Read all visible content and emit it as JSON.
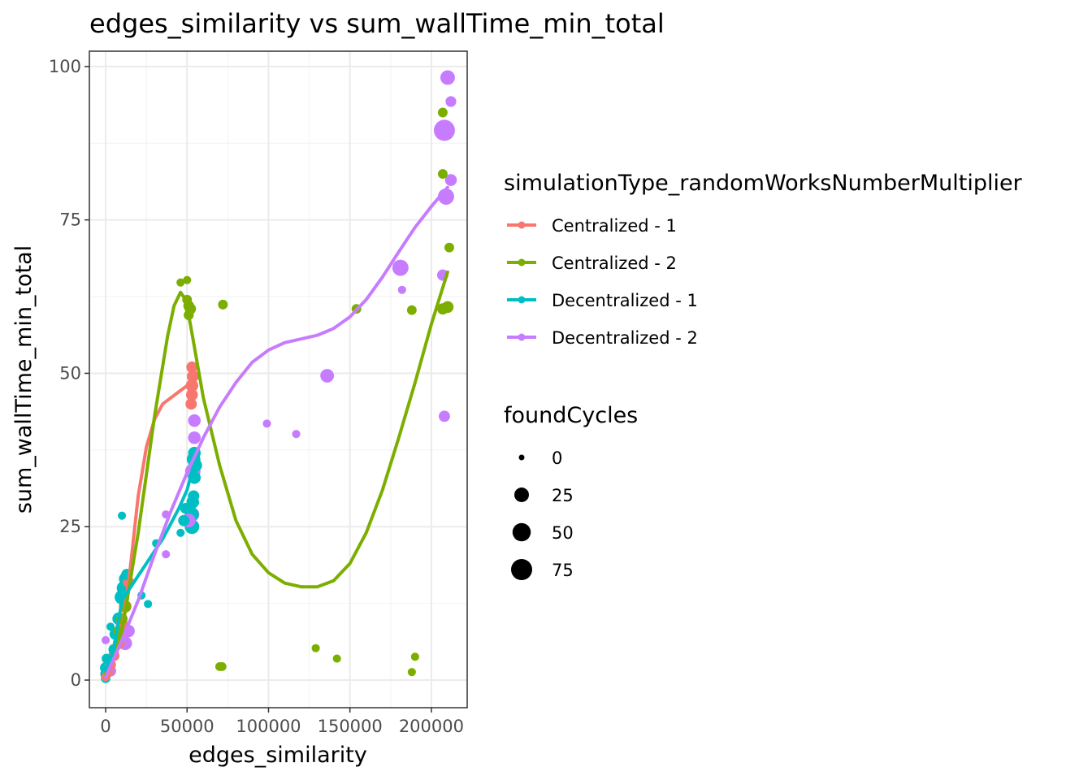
{
  "chart_data": {
    "type": "scatter",
    "title": "edges_similarity  vs  sum_wallTime_min_total",
    "xlabel": "edges_similarity",
    "ylabel": "sum_wallTime_min_total",
    "xlim": [
      -10000,
      222000
    ],
    "ylim": [
      -4.5,
      102.5
    ],
    "x_ticks": [
      0,
      50000,
      100000,
      150000,
      200000
    ],
    "y_ticks": [
      0,
      25,
      50,
      75,
      100
    ],
    "x_tick_labels": [
      "0",
      "50000",
      "100000",
      "150000",
      "200000"
    ],
    "y_tick_labels": [
      "0",
      "25",
      "50",
      "75",
      "100"
    ],
    "grid": true,
    "color_legend": {
      "title": "simulationType_randomWorksNumberMultiplier",
      "placement": "right"
    },
    "size_legend": {
      "title": "foundCycles",
      "placement": "right",
      "breaks": [
        0,
        25,
        50,
        75
      ],
      "labels": [
        "0",
        "25",
        "50",
        "75"
      ]
    },
    "series": [
      {
        "name": "Centralized - 1",
        "color": "#F8766D",
        "points": [
          [
            0,
            0.5,
            3
          ],
          [
            1500,
            1.2,
            5
          ],
          [
            3000,
            2.5,
            8
          ],
          [
            5000,
            4,
            10
          ],
          [
            8000,
            6,
            12
          ],
          [
            10000,
            9,
            14
          ],
          [
            12000,
            12,
            15
          ],
          [
            14000,
            16,
            10
          ],
          [
            52500,
            45,
            10
          ],
          [
            53000,
            46.5,
            12
          ],
          [
            53000,
            48,
            15
          ],
          [
            53500,
            49.5,
            12
          ],
          [
            53000,
            51,
            10
          ]
        ],
        "smooth": [
          [
            0,
            0.5
          ],
          [
            5000,
            3.5
          ],
          [
            10000,
            8
          ],
          [
            15000,
            18
          ],
          [
            20000,
            30
          ],
          [
            25000,
            38
          ],
          [
            30000,
            42.5
          ],
          [
            35000,
            45
          ],
          [
            40000,
            46
          ],
          [
            45000,
            47
          ],
          [
            50000,
            48
          ],
          [
            53000,
            49
          ]
        ]
      },
      {
        "name": "Centralized - 2",
        "color": "#7CAE00",
        "points": [
          [
            46000,
            64.8,
            2
          ],
          [
            50000,
            65.2,
            2
          ],
          [
            50000,
            62,
            5
          ],
          [
            51000,
            61,
            8
          ],
          [
            52000,
            60.5,
            10
          ],
          [
            51000,
            59.5,
            6
          ],
          [
            72000,
            61.2,
            5
          ],
          [
            154000,
            60.5,
            5
          ],
          [
            188000,
            60.3,
            5
          ],
          [
            207000,
            60.5,
            10
          ],
          [
            210000,
            60.8,
            12
          ],
          [
            207000,
            82.5,
            5
          ],
          [
            207000,
            92.5,
            5
          ],
          [
            211000,
            70.5,
            5
          ],
          [
            70000,
            2.2,
            3
          ],
          [
            71500,
            2.2,
            3
          ],
          [
            129000,
            5.2,
            2
          ],
          [
            142000,
            3.5,
            2
          ],
          [
            188000,
            1.3,
            2
          ],
          [
            190000,
            3.8,
            2
          ],
          [
            8000,
            8,
            8
          ],
          [
            10000,
            10,
            10
          ],
          [
            12000,
            12,
            10
          ]
        ],
        "smooth": [
          [
            0,
            1
          ],
          [
            10000,
            8
          ],
          [
            20000,
            24
          ],
          [
            30000,
            43
          ],
          [
            38000,
            56
          ],
          [
            42000,
            61
          ],
          [
            46000,
            63.2
          ],
          [
            49000,
            62
          ],
          [
            52000,
            58
          ],
          [
            60000,
            46
          ],
          [
            70000,
            35
          ],
          [
            80000,
            26
          ],
          [
            90000,
            20.5
          ],
          [
            100000,
            17.5
          ],
          [
            110000,
            15.8
          ],
          [
            120000,
            15.2
          ],
          [
            130000,
            15.2
          ],
          [
            140000,
            16.2
          ],
          [
            150000,
            19
          ],
          [
            160000,
            24
          ],
          [
            170000,
            31
          ],
          [
            180000,
            39.5
          ],
          [
            190000,
            48.5
          ],
          [
            200000,
            58
          ],
          [
            210000,
            66.5
          ]
        ]
      },
      {
        "name": "Decentralized - 1",
        "color": "#00BFC4",
        "points": [
          [
            0,
            0.3,
            5
          ],
          [
            0,
            1,
            8
          ],
          [
            0,
            2,
            10
          ],
          [
            500,
            3.5,
            5
          ],
          [
            3000,
            8.7,
            2
          ],
          [
            5000,
            5,
            8
          ],
          [
            6000,
            7.5,
            12
          ],
          [
            8000,
            10,
            15
          ],
          [
            10000,
            13.5,
            25
          ],
          [
            11000,
            15,
            20
          ],
          [
            12000,
            16.5,
            15
          ],
          [
            13000,
            17.2,
            10
          ],
          [
            10000,
            26.8,
            2
          ],
          [
            22000,
            13.8,
            2
          ],
          [
            26000,
            12.4,
            2
          ],
          [
            31000,
            22.3,
            2
          ],
          [
            53000,
            25,
            25
          ],
          [
            53000,
            27,
            20
          ],
          [
            53500,
            29,
            15
          ],
          [
            54000,
            30,
            10
          ],
          [
            54500,
            33,
            15
          ],
          [
            55000,
            35,
            20
          ],
          [
            54000,
            36,
            20
          ],
          [
            54500,
            37,
            15
          ],
          [
            46000,
            24,
            2
          ],
          [
            48000,
            26,
            10
          ],
          [
            49000,
            28,
            8
          ]
        ],
        "smooth": [
          [
            0,
            1.5
          ],
          [
            5000,
            5
          ],
          [
            10000,
            13
          ],
          [
            15000,
            15
          ],
          [
            20000,
            17
          ],
          [
            25000,
            19
          ],
          [
            30000,
            21
          ],
          [
            35000,
            23
          ],
          [
            40000,
            25.5
          ],
          [
            45000,
            28
          ],
          [
            50000,
            31
          ],
          [
            55000,
            36
          ]
        ]
      },
      {
        "name": "Decentralized - 2",
        "color": "#C77CFF",
        "points": [
          [
            0,
            6.5,
            2
          ],
          [
            3000,
            1.5,
            10
          ],
          [
            12000,
            6,
            20
          ],
          [
            14000,
            8,
            15
          ],
          [
            37000,
            27,
            2
          ],
          [
            37000,
            20.5,
            2
          ],
          [
            51000,
            26,
            20
          ],
          [
            53000,
            27,
            25
          ],
          [
            53500,
            34,
            30
          ],
          [
            54500,
            39.5,
            15
          ],
          [
            54500,
            42.3,
            15
          ],
          [
            99000,
            41.8,
            2
          ],
          [
            117000,
            40.1,
            2
          ],
          [
            136000,
            49.6,
            20
          ],
          [
            181000,
            67.2,
            35
          ],
          [
            182000,
            63.6,
            2
          ],
          [
            207000,
            66,
            10
          ],
          [
            208000,
            89.6,
            75
          ],
          [
            210000,
            98.2,
            25
          ],
          [
            212000,
            94.3,
            8
          ],
          [
            212000,
            81.5,
            12
          ],
          [
            209000,
            78.8,
            35
          ],
          [
            208000,
            43,
            10
          ]
        ],
        "smooth": [
          [
            0,
            0.5
          ],
          [
            10000,
            6.5
          ],
          [
            20000,
            13
          ],
          [
            30000,
            20.5
          ],
          [
            40000,
            27.5
          ],
          [
            50000,
            33.8
          ],
          [
            60000,
            39.5
          ],
          [
            70000,
            44.5
          ],
          [
            80000,
            48.5
          ],
          [
            90000,
            51.8
          ],
          [
            100000,
            53.8
          ],
          [
            110000,
            55
          ],
          [
            120000,
            55.6
          ],
          [
            130000,
            56.2
          ],
          [
            140000,
            57.3
          ],
          [
            150000,
            59.2
          ],
          [
            160000,
            62
          ],
          [
            170000,
            65.7
          ],
          [
            180000,
            69.8
          ],
          [
            190000,
            73.8
          ],
          [
            200000,
            77.2
          ],
          [
            210000,
            80.3
          ]
        ]
      }
    ]
  }
}
